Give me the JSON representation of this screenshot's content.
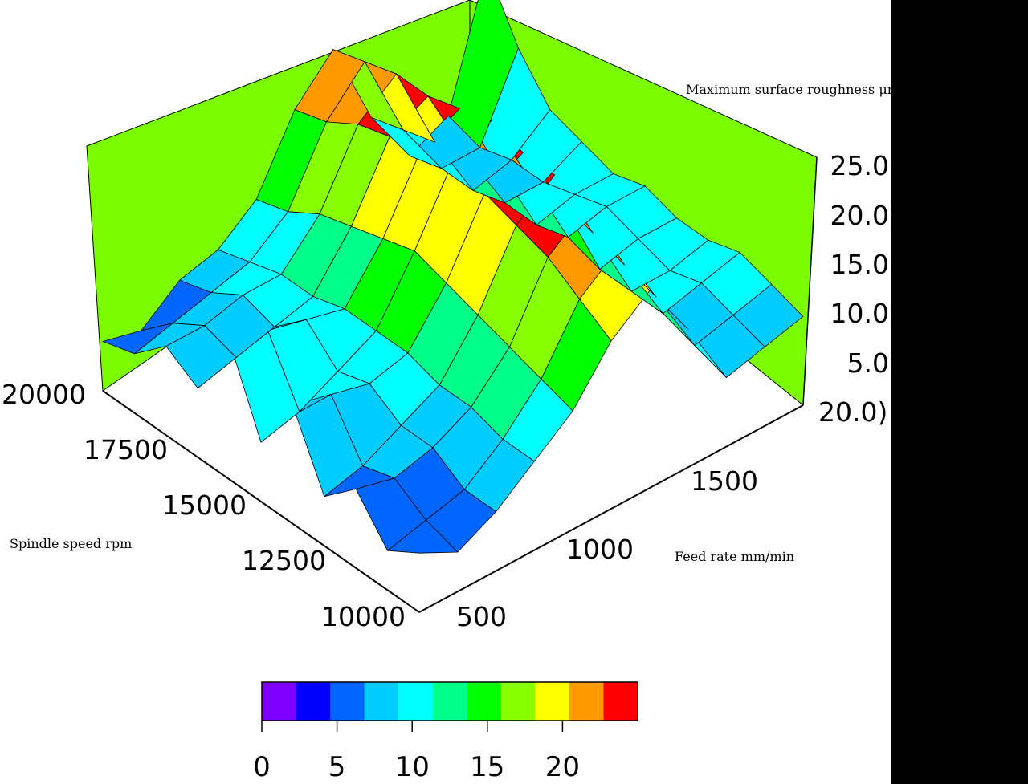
{
  "chart_data": {
    "type": "surface",
    "title": "",
    "zlabel": "Maximum surface roughness μm",
    "xlabel": "Feed rate mm/min",
    "ylabel": "Spindle speed rpm",
    "x_ticks": [
      "500",
      "1000",
      "1500",
      "20.0)"
    ],
    "y_ticks": [
      "10000",
      "12500",
      "15000",
      "17500",
      "20000"
    ],
    "z_ticks": [
      "5.0",
      "10.0",
      "15.0",
      "20.0",
      "25.0"
    ],
    "x_range": [
      500,
      2000
    ],
    "y_range": [
      10000,
      20000
    ],
    "z_range": [
      0,
      25
    ],
    "surface_rows": [
      {
        "feed": 500,
        "values": [
          6,
          4,
          8,
          5,
          12,
          6,
          14,
          7,
          9,
          6,
          5
        ]
      },
      {
        "feed": 650,
        "values": [
          4,
          5,
          7,
          6,
          11,
          7,
          13,
          8,
          9,
          7,
          4
        ]
      },
      {
        "feed": 800,
        "values": [
          6,
          6,
          8,
          8,
          10,
          9,
          12,
          9,
          10,
          8,
          7
        ]
      },
      {
        "feed": 950,
        "values": [
          9,
          9,
          10,
          10,
          11,
          11,
          11,
          10,
          10,
          9,
          8
        ]
      },
      {
        "feed": 1100,
        "values": [
          12,
          13,
          14,
          15,
          16,
          17,
          16,
          15,
          14,
          12,
          11
        ]
      },
      {
        "feed": 1250,
        "values": [
          17,
          19,
          21,
          22,
          23,
          24,
          23,
          22,
          21,
          19,
          18
        ]
      },
      {
        "feed": 1400,
        "values": [
          20,
          22,
          24,
          25,
          25,
          26,
          25,
          24,
          24,
          23,
          22
        ]
      },
      {
        "feed": 1550,
        "values": [
          14,
          15,
          16,
          17,
          18,
          18,
          17,
          16,
          15,
          14,
          13
        ]
      },
      {
        "feed": 1700,
        "values": [
          7,
          8,
          9,
          9,
          9,
          10,
          9,
          9,
          8,
          8,
          7
        ]
      },
      {
        "feed": 1850,
        "values": [
          8,
          9,
          10,
          9,
          10,
          11,
          10,
          9,
          9,
          8,
          9
        ]
      },
      {
        "feed": 2000,
        "values": [
          9,
          10,
          11,
          10,
          10,
          11,
          10,
          11,
          12,
          16,
          22
        ]
      }
    ],
    "colorbar": {
      "ticks": [
        "0",
        "5",
        "10",
        "15",
        "20"
      ],
      "min": 0,
      "max": 25,
      "colors": [
        "#7f00ff",
        "#0000ff",
        "#0066ff",
        "#00ccff",
        "#00ffff",
        "#00ff88",
        "#00ff00",
        "#88ff00",
        "#ffff00",
        "#ff9900",
        "#ff0000"
      ]
    },
    "wall_color": "#7cfc00",
    "grid": false
  }
}
